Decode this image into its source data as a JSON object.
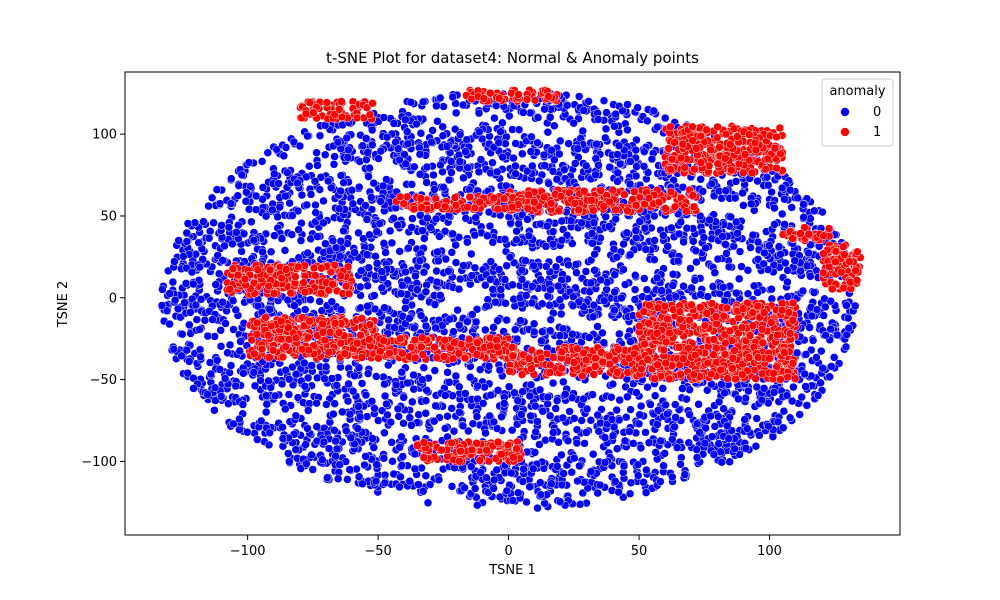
{
  "chart_data": {
    "type": "scatter",
    "title": "t-SNE Plot for dataset4: Normal & Anomaly points",
    "xlabel": "TSNE 1",
    "ylabel": "TSNE 2",
    "xlim": [
      -147,
      150
    ],
    "ylim": [
      -145,
      138
    ],
    "xticks": [
      -100,
      -50,
      0,
      50,
      100
    ],
    "yticks": [
      -100,
      -50,
      0,
      50,
      100
    ],
    "grid": false,
    "legend": {
      "title": "anomaly",
      "placement": "top-right",
      "entries": [
        {
          "label": "0",
          "color": "#0000ff"
        },
        {
          "label": "1",
          "color": "#ff0000"
        }
      ]
    },
    "series": [
      {
        "name": "0",
        "color": "#0000ff",
        "description": "normal points forming an elliptical cloud spanning x -135..135, y -130..128",
        "region": {
          "cx": 0,
          "cy": -2,
          "rx": 133,
          "ry": 128
        }
      },
      {
        "name": "1",
        "color": "#ff0000",
        "clusters": [
          {
            "x": [
              0,
              72
            ],
            "y": [
              52,
              66
            ]
          },
          {
            "x": [
              -45,
              5
            ],
            "y": [
              54,
              62
            ]
          },
          {
            "x": [
              -80,
              -52
            ],
            "y": [
              109,
              120
            ]
          },
          {
            "x": [
              -17,
              20
            ],
            "y": [
              120,
              127
            ]
          },
          {
            "x": [
              60,
              105
            ],
            "y": [
              76,
              105
            ]
          },
          {
            "x": [
              105,
              123
            ],
            "y": [
              35,
              43
            ]
          },
          {
            "x": [
              120,
              135
            ],
            "y": [
              5,
              33
            ]
          },
          {
            "x": [
              -108,
              -60
            ],
            "y": [
              2,
              20
            ]
          },
          {
            "x": [
              -100,
              -50
            ],
            "y": [
              -37,
              -12
            ]
          },
          {
            "x": [
              -50,
              0
            ],
            "y": [
              -38,
              -24
            ]
          },
          {
            "x": [
              0,
              50
            ],
            "y": [
              -48,
              -30
            ]
          },
          {
            "x": [
              50,
              110
            ],
            "y": [
              -50,
              -3
            ]
          },
          {
            "x": [
              -35,
              5
            ],
            "y": [
              -100,
              -88
            ]
          }
        ]
      }
    ]
  }
}
